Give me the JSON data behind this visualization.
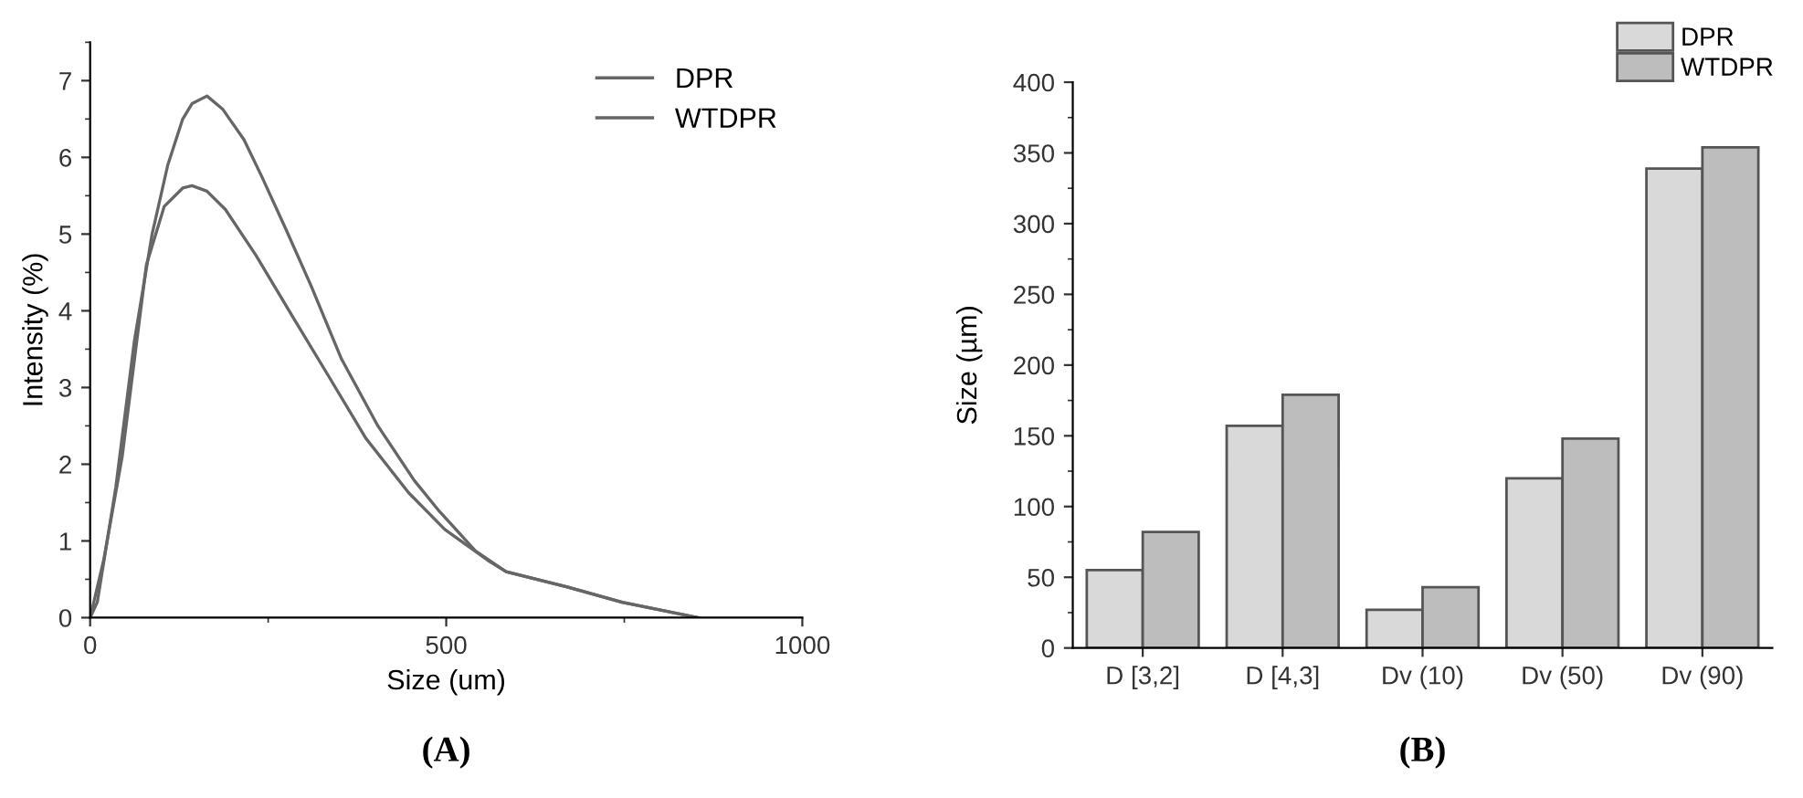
{
  "chart_data": [
    {
      "type": "line",
      "xlabel": "Size (um)",
      "ylabel": "Intensity (%)",
      "xlim": [
        0,
        1000
      ],
      "ylim": [
        0,
        7.5
      ],
      "xticks": [
        0,
        500,
        1000
      ],
      "yticks": [
        0,
        1,
        2,
        3,
        4,
        5,
        6,
        7
      ],
      "legend": "top right",
      "grid": false,
      "annotations": [
        "(A)"
      ],
      "series": [
        {
          "name": "DPR",
          "color": "#666666",
          "x": [
            0,
            19,
            45,
            79,
            104,
            130,
            143,
            164,
            190,
            233,
            284,
            336,
            387,
            447,
            498,
            558,
            584,
            670,
            747,
            854
          ],
          "values": [
            0,
            0.75,
            2.1,
            4.6,
            5.36,
            5.6,
            5.63,
            5.56,
            5.32,
            4.72,
            3.93,
            3.13,
            2.34,
            1.63,
            1.15,
            0.75,
            0.6,
            0.4,
            0.2,
            0
          ]
        },
        {
          "name": "WTDPR",
          "color": "#666666",
          "x": [
            0,
            10,
            36,
            62,
            87,
            109,
            130,
            143,
            164,
            186,
            216,
            241,
            276,
            310,
            353,
            404,
            455,
            490,
            541,
            584,
            670,
            747,
            854
          ],
          "values": [
            0,
            0.2,
            1.7,
            3.6,
            5.0,
            5.9,
            6.5,
            6.7,
            6.8,
            6.63,
            6.23,
            5.75,
            5.04,
            4.33,
            3.37,
            2.5,
            1.79,
            1.39,
            0.87,
            0.6,
            0.4,
            0.2,
            0
          ]
        }
      ]
    },
    {
      "type": "bar",
      "ylabel": "Size (µm)",
      "categories": [
        "D [3,2]",
        "D [4,3]",
        "Dv (10)",
        "Dv (50)",
        "Dv (90)"
      ],
      "ylim": [
        0,
        400
      ],
      "yticks": [
        0,
        50,
        100,
        150,
        200,
        250,
        300,
        350,
        400
      ],
      "legend": "top right",
      "grid": false,
      "annotations": [
        "(B)"
      ],
      "series": [
        {
          "name": "DPR",
          "color": "#d9d9d9",
          "values": [
            55,
            157,
            27,
            120,
            339
          ]
        },
        {
          "name": "WTDPR",
          "color": "#bdbdbd",
          "values": [
            82,
            179,
            43,
            148,
            354
          ]
        }
      ]
    }
  ]
}
